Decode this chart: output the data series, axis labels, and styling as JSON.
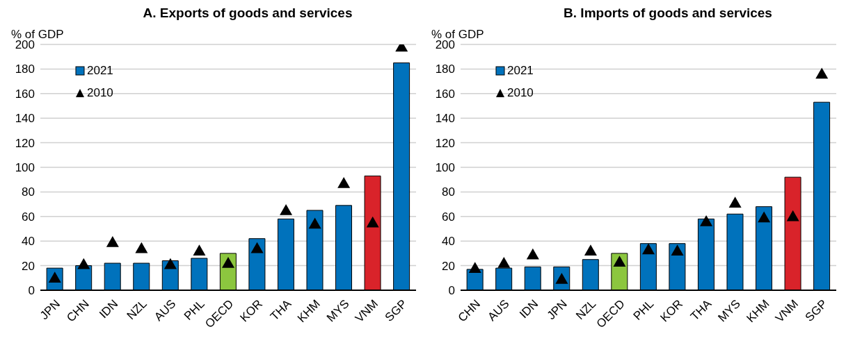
{
  "chart_data": [
    {
      "type": "bar",
      "title": "A. Exports of goods and services",
      "ylabel": "% of GDP",
      "categories": [
        "JPN",
        "CHN",
        "IDN",
        "NZL",
        "AUS",
        "PHL",
        "OECD",
        "KOR",
        "THA",
        "KHM",
        "MYS",
        "VNM",
        "SGP"
      ],
      "series": [
        {
          "name": "2021",
          "color": "#0072bc",
          "colors": [
            "#0072bc",
            "#0072bc",
            "#0072bc",
            "#0072bc",
            "#0072bc",
            "#0072bc",
            "#8cc63f",
            "#0072bc",
            "#0072bc",
            "#0072bc",
            "#0072bc",
            "#d9232a",
            "#0072bc"
          ],
          "values": [
            18,
            20,
            22,
            22,
            24,
            26,
            30,
            42,
            58,
            65,
            69,
            93,
            185
          ]
        },
        {
          "name": "2010",
          "type": "scatter",
          "color": "#000000",
          "values": [
            10,
            21,
            39,
            34,
            21,
            32,
            22,
            34,
            65,
            54,
            87,
            55,
            198
          ]
        }
      ],
      "ylim": [
        0,
        200
      ],
      "yticks": [
        0,
        20,
        40,
        60,
        80,
        100,
        120,
        140,
        160,
        180,
        200
      ],
      "grid": "y",
      "legend": "top left",
      "marker": "triangle"
    },
    {
      "type": "bar",
      "title": "B. Imports of goods and services",
      "ylabel": "% of GDP",
      "categories": [
        "CHN",
        "AUS",
        "IDN",
        "JPN",
        "NZL",
        "OECD",
        "PHL",
        "KOR",
        "THA",
        "MYS",
        "KHM",
        "VNM",
        "SGP"
      ],
      "series": [
        {
          "name": "2021",
          "color": "#0072bc",
          "colors": [
            "#0072bc",
            "#0072bc",
            "#0072bc",
            "#0072bc",
            "#0072bc",
            "#8cc63f",
            "#0072bc",
            "#0072bc",
            "#0072bc",
            "#0072bc",
            "#0072bc",
            "#d9232a",
            "#0072bc"
          ],
          "values": [
            17,
            18,
            19,
            19,
            25,
            30,
            38,
            38,
            58,
            62,
            68,
            92,
            153
          ]
        },
        {
          "name": "2010",
          "type": "scatter",
          "color": "#000000",
          "values": [
            18,
            22,
            29,
            9,
            32,
            23,
            33,
            32,
            56,
            71,
            59,
            60,
            176
          ]
        }
      ],
      "ylim": [
        0,
        200
      ],
      "yticks": [
        0,
        20,
        40,
        60,
        80,
        100,
        120,
        140,
        160,
        180,
        200
      ],
      "grid": "y",
      "legend": "top left",
      "marker": "triangle"
    }
  ]
}
